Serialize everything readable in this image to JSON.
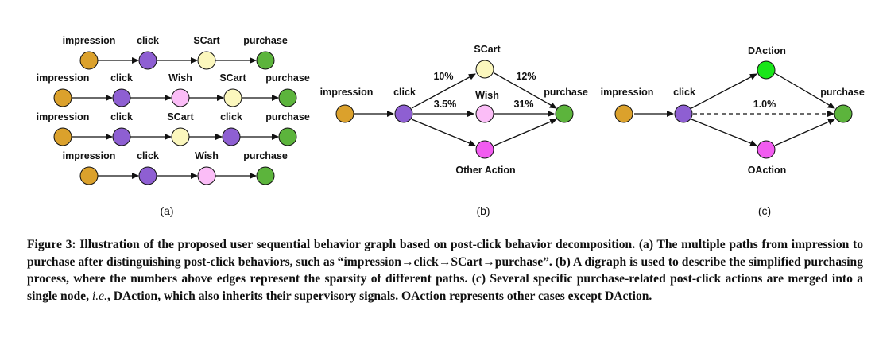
{
  "colors": {
    "impression": "#dba12c",
    "click": "#8e5fd2",
    "scart": "#fbf7bd",
    "wish": "#fbbdf7",
    "purchase": "#5cb43c",
    "daction": "#19e619",
    "other": "#f25cf0",
    "edge": "#111111"
  },
  "panel_a": {
    "label": "(a)",
    "paths": [
      [
        "impression",
        "click",
        "SCart",
        "purchase"
      ],
      [
        "impression",
        "click",
        "Wish",
        "SCart",
        "purchase"
      ],
      [
        "impression",
        "click",
        "SCart",
        "click",
        "purchase"
      ],
      [
        "impression",
        "click",
        "Wish",
        "purchase"
      ]
    ]
  },
  "panel_b": {
    "label": "(b)",
    "nodes": {
      "impression": "impression",
      "click": "click",
      "scart": "SCart",
      "wish": "Wish",
      "other": "Other Action",
      "purchase": "purchase"
    },
    "edge_labels": {
      "click_scart": "10%",
      "scart_purchase": "12%",
      "click_wish": "3.5%",
      "wish_purchase": "31%"
    }
  },
  "panel_c": {
    "label": "(c)",
    "nodes": {
      "impression": "impression",
      "click": "click",
      "daction": "DAction",
      "oaction": "OAction",
      "purchase": "purchase"
    },
    "edge_labels": {
      "click_purchase": "1.0%"
    }
  },
  "caption": {
    "part1": "Figure 3: Illustration of the proposed user sequential behavior graph based on post-click behavior decomposition. (a) The multiple paths from impression to purchase after distinguishing post-click behaviors, such as “impression→click→SCart→purchase”. (b) A digraph is used to describe the simplified purchasing process, where the numbers above edges represent the sparsity of different paths. (c) Several specific purchase-related post-click actions are merged into a single node, ",
    "ie": "i.e.",
    "part2": ", DAction, which also inherits their supervisory signals. OAction represents other cases except DAction."
  }
}
